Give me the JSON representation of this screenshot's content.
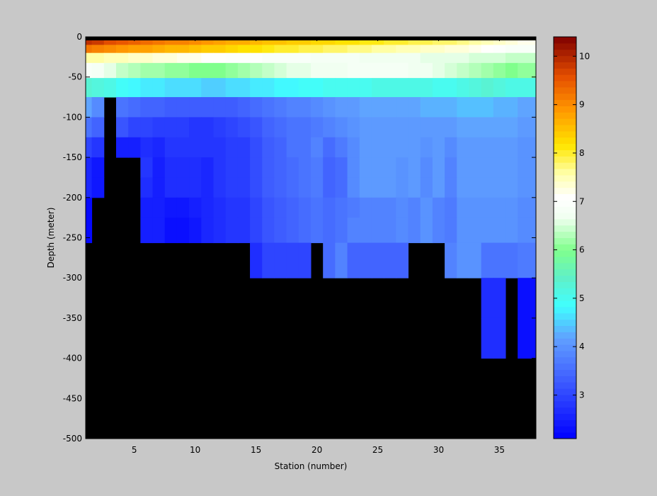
{
  "figure": {
    "background": "#c8c8c8"
  },
  "chart_data": {
    "type": "heatmap",
    "title": "",
    "xlabel": "Station (number)",
    "ylabel": "Depth (meter)",
    "xlim": [
      1,
      38
    ],
    "ylim": [
      -500,
      0
    ],
    "x_ticks": [
      5,
      10,
      15,
      20,
      25,
      30,
      35
    ],
    "y_ticks": [
      0,
      -50,
      -100,
      -150,
      -200,
      -250,
      -300,
      -350,
      -400,
      -450,
      -500
    ],
    "colorbar": {
      "range": [
        2.1,
        10.4
      ],
      "ticks": [
        3,
        4,
        5,
        6,
        7,
        8,
        9,
        10
      ],
      "colormap": "jet-white"
    },
    "no_data_color": "#000000",
    "stations": [
      1,
      2,
      3,
      4,
      5,
      6,
      7,
      8,
      9,
      10,
      11,
      12,
      13,
      14,
      15,
      16,
      17,
      18,
      19,
      20,
      21,
      22,
      23,
      24,
      25,
      26,
      27,
      28,
      29,
      30,
      31,
      32,
      33,
      34,
      35,
      36,
      37
    ],
    "depths": [
      -5,
      -15,
      -25,
      -40,
      -62.5,
      -87.5,
      -112.5,
      -137.5,
      -162.5,
      -187.5,
      -212.5,
      -237.5,
      -275,
      -325,
      -375,
      -425,
      -475
    ],
    "values": [
      [
        9.9,
        9.8,
        9.6,
        9.5,
        9.4,
        9.3,
        9.2,
        9.1,
        9.1,
        9.0,
        8.9,
        8.8,
        8.7,
        8.7,
        8.6,
        8.5,
        8.5,
        8.4,
        8.4,
        8.3,
        8.3,
        8.2,
        8.2,
        8.1,
        8.1,
        8.0,
        8.0,
        7.9,
        7.9,
        7.8,
        7.8,
        7.7,
        7.6,
        7.5,
        7.4,
        7.3,
        7.2
      ],
      [
        9.2,
        9.1,
        9.0,
        8.9,
        8.8,
        8.8,
        8.7,
        8.6,
        8.6,
        8.5,
        8.4,
        8.4,
        8.3,
        8.2,
        8.2,
        8.1,
        8.0,
        8.0,
        7.9,
        7.9,
        7.8,
        7.8,
        7.7,
        7.7,
        7.6,
        7.6,
        7.5,
        7.5,
        7.4,
        7.4,
        7.3,
        7.3,
        7.2,
        7.1,
        7.0,
        6.9,
        6.9
      ],
      [
        7.6,
        7.6,
        7.5,
        7.5,
        7.4,
        7.4,
        7.3,
        7.3,
        7.2,
        7.2,
        7.1,
        7.1,
        7.0,
        7.0,
        7.0,
        6.9,
        6.9,
        6.9,
        6.9,
        6.8,
        6.8,
        6.8,
        6.8,
        6.7,
        6.7,
        6.7,
        6.7,
        6.7,
        6.6,
        6.6,
        6.6,
        6.6,
        6.5,
        6.5,
        6.5,
        6.4,
        6.4
      ],
      [
        6.9,
        6.8,
        6.6,
        6.4,
        6.3,
        6.2,
        6.2,
        6.1,
        6.1,
        6.0,
        6.0,
        6.0,
        6.1,
        6.2,
        6.3,
        6.4,
        6.5,
        6.6,
        6.6,
        6.7,
        6.7,
        6.7,
        6.8,
        6.8,
        6.8,
        6.8,
        6.8,
        6.7,
        6.7,
        6.6,
        6.5,
        6.4,
        6.3,
        6.2,
        6.1,
        6.0,
        6.1
      ],
      [
        5.3,
        5.2,
        5.1,
        4.9,
        4.8,
        4.7,
        4.7,
        4.6,
        4.6,
        4.6,
        4.5,
        4.5,
        4.6,
        4.6,
        4.7,
        4.7,
        4.8,
        4.8,
        4.9,
        4.9,
        5.0,
        5.0,
        5.0,
        5.0,
        5.1,
        5.1,
        5.1,
        5.1,
        5.1,
        5.0,
        5.0,
        5.1,
        5.2,
        5.3,
        5.2,
        5.1,
        5.1
      ],
      [
        4.2,
        3.9,
        null,
        3.6,
        3.5,
        3.4,
        3.4,
        3.3,
        3.3,
        3.3,
        3.3,
        3.3,
        3.3,
        3.4,
        3.5,
        3.6,
        3.7,
        3.8,
        3.8,
        3.9,
        4.0,
        4.1,
        4.1,
        4.2,
        4.2,
        4.2,
        4.2,
        4.2,
        4.3,
        4.3,
        4.3,
        4.4,
        4.4,
        4.4,
        4.3,
        4.3,
        4.2
      ],
      [
        3.6,
        3.4,
        null,
        3.2,
        3.0,
        3.0,
        2.9,
        2.9,
        2.9,
        2.8,
        2.8,
        2.9,
        3.0,
        3.1,
        3.2,
        3.4,
        3.5,
        3.6,
        3.6,
        3.7,
        3.8,
        3.9,
        4.0,
        4.1,
        4.1,
        4.1,
        4.1,
        4.1,
        4.1,
        4.1,
        4.1,
        4.2,
        4.2,
        4.2,
        4.2,
        4.2,
        4.1
      ],
      [
        3.0,
        2.8,
        null,
        2.5,
        2.5,
        2.7,
        2.6,
        2.8,
        2.8,
        2.8,
        2.8,
        2.8,
        2.9,
        2.9,
        3.1,
        3.3,
        3.4,
        3.6,
        3.6,
        3.8,
        3.5,
        3.7,
        3.9,
        4.1,
        4.1,
        4.1,
        4.1,
        4.1,
        4.0,
        4.1,
        3.9,
        4.1,
        4.1,
        4.1,
        4.1,
        4.1,
        4.0
      ],
      [
        2.6,
        2.4,
        null,
        null,
        null,
        2.8,
        2.5,
        2.7,
        2.7,
        2.7,
        2.6,
        2.8,
        2.9,
        2.9,
        3.1,
        3.3,
        3.4,
        3.5,
        3.6,
        3.7,
        3.4,
        3.5,
        3.9,
        4.1,
        4.1,
        4.1,
        4.0,
        4.1,
        3.9,
        4.1,
        3.8,
        4.1,
        4.1,
        4.1,
        4.1,
        4.1,
        4.0
      ],
      [
        2.6,
        2.4,
        null,
        null,
        null,
        2.7,
        2.5,
        2.7,
        2.7,
        2.7,
        2.6,
        2.8,
        2.9,
        2.9,
        3.1,
        3.3,
        3.4,
        3.5,
        3.6,
        3.7,
        3.4,
        3.5,
        3.9,
        4.1,
        4.1,
        4.1,
        4.0,
        4.1,
        3.9,
        4.1,
        3.8,
        4.1,
        4.1,
        4.1,
        4.1,
        4.1,
        4.0
      ],
      [
        2.2,
        null,
        null,
        null,
        null,
        2.5,
        2.5,
        2.4,
        2.4,
        2.5,
        2.6,
        2.7,
        2.8,
        2.8,
        3.0,
        3.2,
        3.3,
        3.4,
        3.5,
        3.6,
        3.5,
        3.6,
        3.7,
        3.8,
        3.8,
        3.8,
        3.9,
        3.8,
        4.0,
        3.8,
        3.7,
        4.0,
        4.0,
        4.0,
        4.0,
        4.0,
        3.9
      ],
      [
        2.2,
        null,
        null,
        null,
        null,
        2.5,
        2.5,
        2.3,
        2.3,
        2.4,
        2.6,
        2.7,
        2.8,
        2.8,
        3.0,
        3.2,
        3.3,
        3.4,
        3.5,
        3.6,
        3.5,
        3.6,
        3.8,
        3.8,
        3.8,
        3.8,
        3.9,
        3.8,
        4.0,
        3.8,
        3.7,
        4.0,
        4.0,
        4.0,
        4.0,
        4.0,
        3.9
      ],
      [
        null,
        null,
        null,
        null,
        null,
        null,
        null,
        null,
        null,
        null,
        null,
        null,
        null,
        null,
        2.7,
        3.0,
        3.0,
        3.0,
        3.0,
        null,
        3.5,
        3.8,
        3.4,
        3.4,
        3.4,
        3.4,
        3.4,
        null,
        null,
        null,
        3.8,
        4.0,
        4.0,
        3.6,
        3.6,
        3.6,
        3.7
      ],
      [
        null,
        null,
        null,
        null,
        null,
        null,
        null,
        null,
        null,
        null,
        null,
        null,
        null,
        null,
        null,
        null,
        null,
        null,
        null,
        null,
        null,
        null,
        null,
        null,
        null,
        null,
        null,
        null,
        null,
        null,
        null,
        null,
        null,
        2.7,
        2.7,
        null,
        2.3
      ],
      [
        null,
        null,
        null,
        null,
        null,
        null,
        null,
        null,
        null,
        null,
        null,
        null,
        null,
        null,
        null,
        null,
        null,
        null,
        null,
        null,
        null,
        null,
        null,
        null,
        null,
        null,
        null,
        null,
        null,
        null,
        null,
        null,
        null,
        2.7,
        2.7,
        null,
        2.3
      ],
      [
        null,
        null,
        null,
        null,
        null,
        null,
        null,
        null,
        null,
        null,
        null,
        null,
        null,
        null,
        null,
        null,
        null,
        null,
        null,
        null,
        null,
        null,
        null,
        null,
        null,
        null,
        null,
        null,
        null,
        null,
        null,
        null,
        null,
        null,
        null,
        null,
        null
      ],
      [
        null,
        null,
        null,
        null,
        null,
        null,
        null,
        null,
        null,
        null,
        null,
        null,
        null,
        null,
        null,
        null,
        null,
        null,
        null,
        null,
        null,
        null,
        null,
        null,
        null,
        null,
        null,
        null,
        null,
        null,
        null,
        null,
        null,
        null,
        null,
        null,
        null
      ]
    ]
  }
}
